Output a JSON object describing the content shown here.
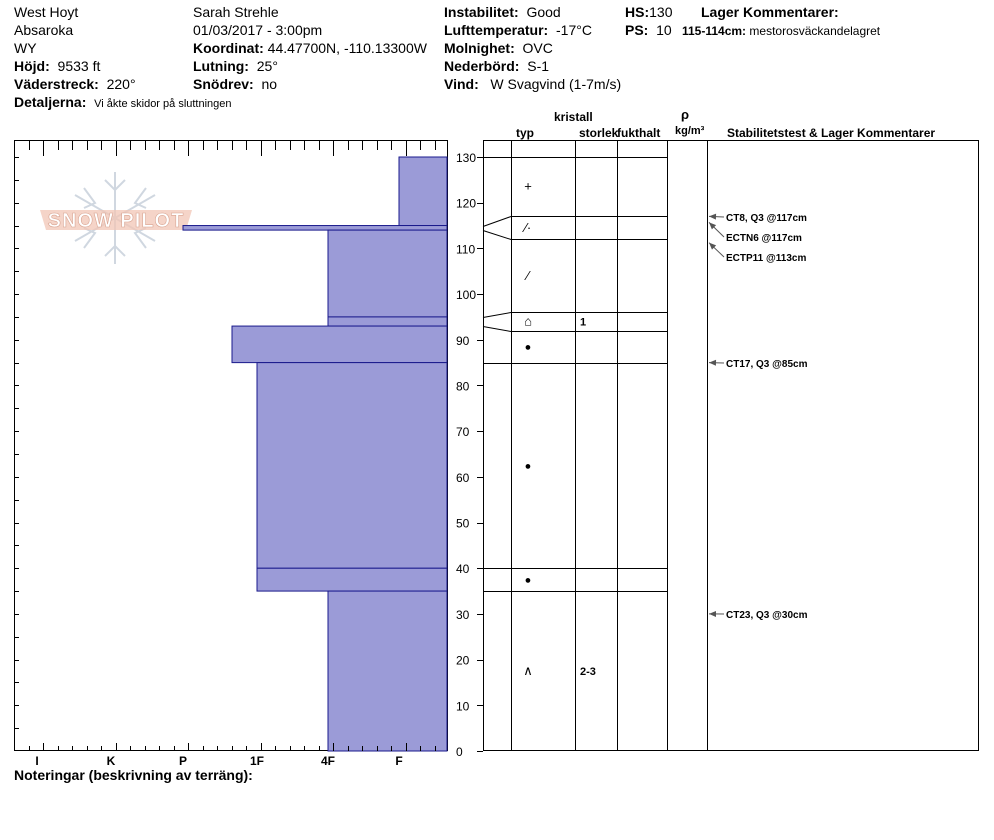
{
  "header": {
    "location": "West Hoyt",
    "range": "Absaroka",
    "state": "WY",
    "elevation_label": "Höjd:",
    "elevation": "9533 ft",
    "aspect_label": "Väderstreck:",
    "aspect": "220°",
    "details_label": "Detaljerna:",
    "details": "Vi åkte skidor på sluttningen",
    "observer": "Sarah Strehle",
    "datetime": "01/03/2017 - 3:00pm",
    "coord_label": "Koordinat:",
    "coord": "44.47700N, -110.13300W",
    "slope_label": "Lutning:",
    "slope": "25°",
    "drift_label": "Snödrev:",
    "drift": "no",
    "instability_label": "Instabilitet:",
    "instability": "Good",
    "airtemp_label": "Lufttemperatur:",
    "airtemp": "-17°C",
    "sky_label": "Molnighet:",
    "sky": "OVC",
    "precip_label": "Nederbörd:",
    "precip": "S-1",
    "wind_label": "Vind:",
    "wind": "W Svagvind (1-7m/s)",
    "hs_label": "HS:",
    "hs": "130",
    "ps_label": "PS:",
    "ps": "10",
    "layer_comments_label": "Lager Kommentarer:",
    "layer_comment_range": "115-114cm:",
    "layer_comment": "mestorosväckandelagret"
  },
  "columns": {
    "type": "typ",
    "crystal": "kristall",
    "size": "storlek",
    "moisture": "fukthalt",
    "rho": "ρ",
    "density_unit": "kg/m³",
    "stability": "Stabilitetstest & Lager Kommentarer"
  },
  "notes_label": "Noteringar (beskrivning av terräng):",
  "logo_text": "SNOW PILOT",
  "colors": {
    "layer_fill": "#9b9bd7",
    "layer_stroke": "#1a1a8c"
  },
  "chart_data": {
    "type": "snow-profile",
    "hardness_scale": [
      "I",
      "K",
      "P",
      "1F",
      "4F",
      "F"
    ],
    "ylim": [
      0,
      130
    ],
    "yticks": [
      0,
      10,
      20,
      30,
      40,
      50,
      60,
      70,
      80,
      90,
      100,
      110,
      120,
      130
    ],
    "layers": [
      {
        "top": 130,
        "bottom": 115,
        "hardness": "F"
      },
      {
        "top": 115,
        "bottom": 114,
        "hardness": "P"
      },
      {
        "top": 114,
        "bottom": 95,
        "hardness": "4F"
      },
      {
        "top": 95,
        "bottom": 93,
        "hardness": "4F"
      },
      {
        "top": 93,
        "bottom": 85,
        "hardness": "1F+"
      },
      {
        "top": 85,
        "bottom": 40,
        "hardness": "1F"
      },
      {
        "top": 40,
        "bottom": 35,
        "hardness": "1F"
      },
      {
        "top": 35,
        "bottom": 0,
        "hardness": "4F"
      }
    ],
    "grain_rows": [
      {
        "top": 130,
        "bottom": 117,
        "symbol": "+",
        "size": ""
      },
      {
        "top": 117,
        "bottom": 112,
        "symbol": "⁄·",
        "size": ""
      },
      {
        "top": 112,
        "bottom": 96,
        "symbol": "⁄",
        "size": ""
      },
      {
        "top": 96,
        "bottom": 92,
        "symbol": "⌂",
        "size": "1"
      },
      {
        "top": 92,
        "bottom": 85,
        "symbol": "●",
        "size": ""
      },
      {
        "top": 85,
        "bottom": 40,
        "symbol": "●",
        "size": ""
      },
      {
        "top": 40,
        "bottom": 35,
        "symbol": "●",
        "size": ""
      },
      {
        "top": 35,
        "bottom": 0,
        "symbol": "∧",
        "size": "2-3"
      }
    ],
    "tests": [
      {
        "depth": 117,
        "label": "CT8, Q3 @117cm"
      },
      {
        "depth": 117,
        "label": "ECTN6 @117cm"
      },
      {
        "depth": 113,
        "label": "ECTP11 @113cm"
      },
      {
        "depth": 85,
        "label": "CT17, Q3 @85cm"
      },
      {
        "depth": 30,
        "label": "CT23, Q3 @30cm"
      }
    ]
  }
}
